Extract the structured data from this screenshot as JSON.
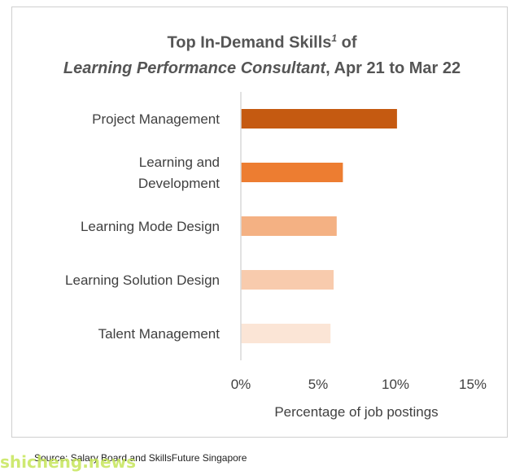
{
  "title": {
    "part1": "Top In-Demand Skills",
    "sup": "1",
    "part2": " of ",
    "italic": "Learning Performance Consultant",
    "part3": ", Apr 21 to Mar 22"
  },
  "source": "Source: Salary Board and SkillsFuture Singapore",
  "watermark": "shicheng.news",
  "chart_data": {
    "type": "bar",
    "orientation": "horizontal",
    "categories": [
      [
        "Project Management"
      ],
      [
        "Learning and",
        "Development"
      ],
      [
        "Learning Mode Design"
      ],
      [
        "Learning Solution Design"
      ],
      [
        "Talent Management"
      ]
    ],
    "values": [
      10.1,
      6.6,
      6.2,
      6.0,
      5.8
    ],
    "colors": [
      "#c55a11",
      "#ed7d31",
      "#f4b183",
      "#f8cbad",
      "#fbe5d6"
    ],
    "xlim": [
      0,
      15
    ],
    "xticks": [
      0,
      5,
      10,
      15
    ],
    "tick_labels": [
      "0%",
      "5%",
      "10%",
      "15%"
    ],
    "xlabel": "Percentage of job postings",
    "grid": false,
    "legend": "none"
  }
}
